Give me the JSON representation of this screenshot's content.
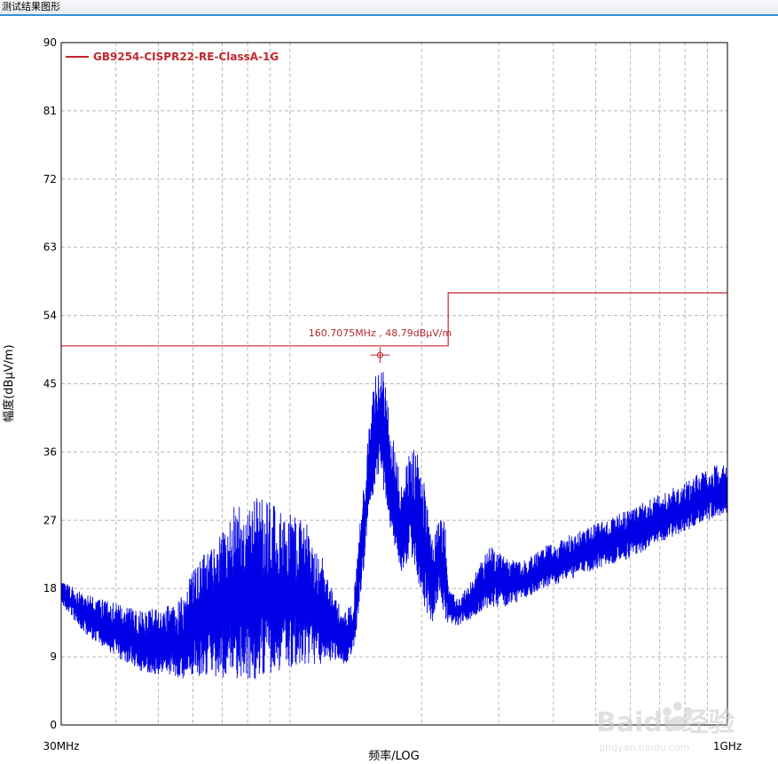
{
  "window": {
    "title": "测试结果图形"
  },
  "chart_data": {
    "type": "line",
    "xscale": "log",
    "xlabel": "频率/LOG",
    "ylabel": "幅度(dBμV/m)",
    "x_tick_labels": [
      "30MHz",
      "1GHz"
    ],
    "xlim_mhz": [
      30,
      1000
    ],
    "ylim": [
      0,
      90
    ],
    "yticks": [
      0,
      9,
      18,
      27,
      36,
      45,
      54,
      63,
      72,
      81,
      90
    ],
    "grid": true,
    "legend_position": "top-left",
    "series": [
      {
        "name": "GB9254-CISPR22-RE-ClassA-1G",
        "color": "#c0282d",
        "style": "step",
        "x_mhz": [
          30,
          230,
          230,
          1000
        ],
        "y": [
          50,
          50,
          57,
          57
        ]
      },
      {
        "color": "#0000e6",
        "style": "noisy-spectrum",
        "envelope": {
          "x_mhz": [
            30,
            34,
            40,
            46,
            55,
            65,
            75,
            85,
            95,
            108,
            118,
            126,
            134,
            140,
            146,
            152,
            157,
            161,
            166,
            172,
            180,
            188,
            196,
            204,
            212,
            220,
            226,
            232,
            240,
            250,
            260,
            275,
            290,
            310,
            340,
            380,
            430,
            500,
            600,
            700,
            800,
            900,
            1000
          ],
          "lower": [
            16,
            12,
            9,
            7,
            6,
            6.5,
            6,
            6,
            7,
            8,
            8,
            8.5,
            8,
            10,
            18,
            28,
            32,
            33,
            29,
            24,
            20,
            22,
            19,
            15,
            13,
            17,
            14,
            13,
            13,
            13.5,
            14,
            15,
            15.5,
            15.5,
            16.5,
            18,
            19,
            20.5,
            22,
            24,
            25.5,
            27,
            28
          ],
          "upper": [
            19,
            17.5,
            16,
            15,
            16,
            24,
            29,
            30,
            29,
            27,
            23,
            17,
            15,
            17,
            30,
            40,
            47,
            48,
            45,
            38,
            32,
            36,
            37,
            31,
            24,
            29,
            27,
            18,
            17,
            18,
            19,
            22,
            24,
            22,
            21.5,
            23.5,
            25,
            26.5,
            28.5,
            30.5,
            32,
            34,
            34.5
          ]
        }
      }
    ],
    "annotation": {
      "label": "160.7075MHz , 48.79dBμV/m",
      "x_mhz": 160.7075,
      "y": 48.79
    }
  },
  "watermark": {
    "logo": "Baidu经验",
    "site": "jingyan.baidu.com"
  }
}
